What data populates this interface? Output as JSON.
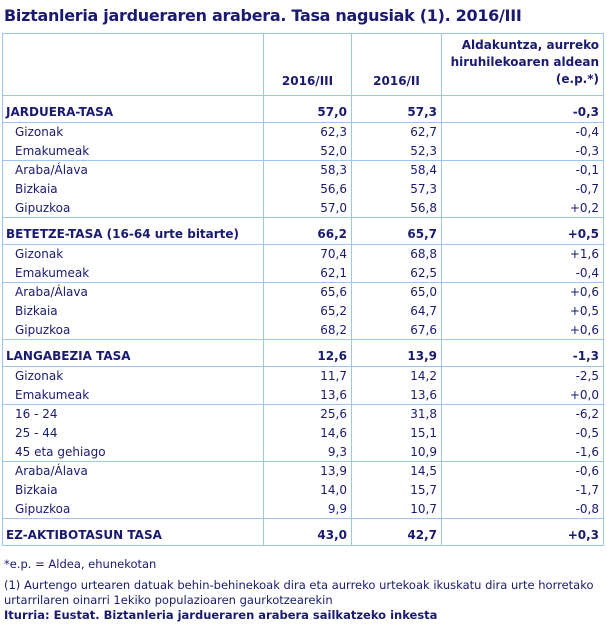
{
  "title": "Biztanleria jardueraren arabera. Tasa nagusiak (1). 2016/III",
  "headers": [
    "",
    "2016/III",
    "2016/II",
    "Aldakuntza, aurreko hiruhilekoaren aldean (e.p.*)"
  ],
  "sections": [
    {
      "label": "JARDUERA-TASA",
      "v": [
        "57,0",
        "57,3",
        "-0,3"
      ],
      "groups": [
        [
          [
            "Gizonak",
            "62,3",
            "62,7",
            "-0,4"
          ],
          [
            "Emakumeak",
            "52,0",
            "52,3",
            "-0,3"
          ]
        ],
        [
          [
            "Araba/Álava",
            "58,3",
            "58,4",
            "-0,1"
          ],
          [
            "Bizkaia",
            "56,6",
            "57,3",
            "-0,7"
          ],
          [
            "Gipuzkoa",
            "57,0",
            "56,8",
            "+0,2"
          ]
        ]
      ]
    },
    {
      "label": "BETETZE-TASA (16-64 urte bitarte)",
      "v": [
        "66,2",
        "65,7",
        "+0,5"
      ],
      "groups": [
        [
          [
            "Gizonak",
            "70,4",
            "68,8",
            "+1,6"
          ],
          [
            "Emakumeak",
            "62,1",
            "62,5",
            "-0,4"
          ]
        ],
        [
          [
            "Araba/Álava",
            "65,6",
            "65,0",
            "+0,6"
          ],
          [
            "Bizkaia",
            "65,2",
            "64,7",
            "+0,5"
          ],
          [
            "Gipuzkoa",
            "68,2",
            "67,6",
            "+0,6"
          ]
        ]
      ]
    },
    {
      "label": "LANGABEZIA TASA",
      "v": [
        "12,6",
        "13,9",
        "-1,3"
      ],
      "groups": [
        [
          [
            "Gizonak",
            "11,7",
            "14,2",
            "-2,5"
          ],
          [
            "Emakumeak",
            "13,6",
            "13,6",
            "+0,0"
          ]
        ],
        [
          [
            "16 - 24",
            "25,6",
            "31,8",
            "-6,2"
          ],
          [
            "25 - 44",
            "14,6",
            "15,1",
            "-0,5"
          ],
          [
            "45 eta gehiago",
            "9,3",
            "10,9",
            "-1,6"
          ]
        ],
        [
          [
            "Araba/Álava",
            "13,9",
            "14,5",
            "-0,6"
          ],
          [
            "Bizkaia",
            "14,0",
            "15,7",
            "-1,7"
          ],
          [
            "Gipuzkoa",
            "9,9",
            "10,7",
            "-0,8"
          ]
        ]
      ]
    },
    {
      "label": "EZ-AKTIBOTASUN  TASA",
      "v": [
        "43,0",
        "42,7",
        "+0,3"
      ],
      "groups": []
    }
  ],
  "notes": {
    "ep": "*e.p. = Aldea, ehunekotan",
    "n1": "(1) Aurtengo urtearen datuak behin-behinekoak dira eta aurreko urtekoak ikuskatu dira urte horretako urtarrilaren oinarri 1ekiko populazioaren gaurkotzearekin",
    "source": "Iturria: Eustat. Biztanleria jardueraren arabera sailkatzeko inkesta"
  }
}
